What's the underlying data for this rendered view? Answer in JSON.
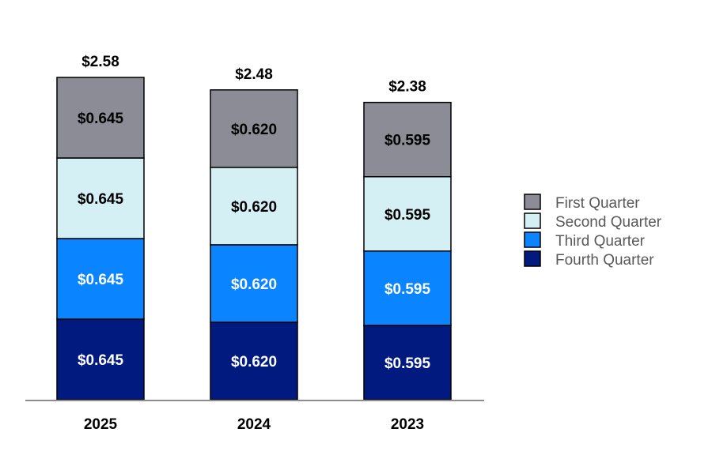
{
  "chart_data": {
    "type": "bar",
    "stacked": true,
    "categories": [
      "2025",
      "2024",
      "2023"
    ],
    "series": [
      {
        "name": "Fourth Quarter",
        "color": "#001A80",
        "text_color": "#FFFFFF",
        "values": [
          0.645,
          0.62,
          0.595
        ],
        "labels": [
          "$0.645",
          "$0.620",
          "$0.595"
        ]
      },
      {
        "name": "Third Quarter",
        "color": "#0A84FF",
        "text_color": "#FFFFFF",
        "values": [
          0.645,
          0.62,
          0.595
        ],
        "labels": [
          "$0.645",
          "$0.620",
          "$0.595"
        ]
      },
      {
        "name": "Second Quarter",
        "color": "#D4F0F5",
        "text_color": "#000000",
        "values": [
          0.645,
          0.62,
          0.595
        ],
        "labels": [
          "$0.645",
          "$0.620",
          "$0.595"
        ]
      },
      {
        "name": "First Quarter",
        "color": "#8C8C96",
        "text_color": "#000000",
        "values": [
          0.645,
          0.62,
          0.595
        ],
        "labels": [
          "$0.645",
          "$0.620",
          "$0.595"
        ]
      }
    ],
    "totals": [
      "$2.58",
      "$2.48",
      "$2.38"
    ],
    "legend_order": [
      "First Quarter",
      "Second Quarter",
      "Third Quarter",
      "Fourth Quarter"
    ],
    "legend_position": "right",
    "title": "",
    "xlabel": "",
    "ylabel": "",
    "ylim": [
      0,
      2.58
    ],
    "grid": false
  }
}
